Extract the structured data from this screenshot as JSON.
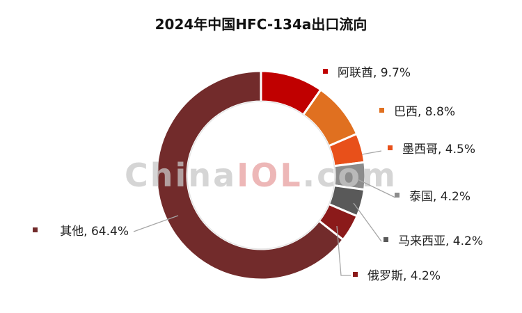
{
  "chart_data": {
    "type": "pie",
    "subtype": "donut",
    "title": "2024年中国HFC-134a出口流向",
    "slices": [
      {
        "name": "阿联酋",
        "value": 9.7,
        "label": "阿联酋, 9.7%",
        "color": "#c00000"
      },
      {
        "name": "巴西",
        "value": 8.8,
        "label": "巴西, 8.8%",
        "color": "#e07020"
      },
      {
        "name": "墨西哥",
        "value": 4.5,
        "label": "墨西哥, 4.5%",
        "color": "#e8501a"
      },
      {
        "name": "泰国",
        "value": 4.2,
        "label": "泰国, 4.2%",
        "color": "#8c8c8c"
      },
      {
        "name": "马来西亚",
        "value": 4.2,
        "label": "马来西亚, 4.2%",
        "color": "#595959"
      },
      {
        "name": "俄罗斯",
        "value": 4.2,
        "label": "俄罗斯, 4.2%",
        "color": "#8b1a1a"
      },
      {
        "name": "其他",
        "value": 64.4,
        "label": "其他, 64.4%",
        "color": "#722b2b"
      }
    ],
    "legend": "none"
  },
  "watermark": {
    "part1": "China",
    "part2": "IOL",
    "part3": ".com",
    "color_gray": "#c8c8c8",
    "color_red": "#e8a0a0"
  }
}
